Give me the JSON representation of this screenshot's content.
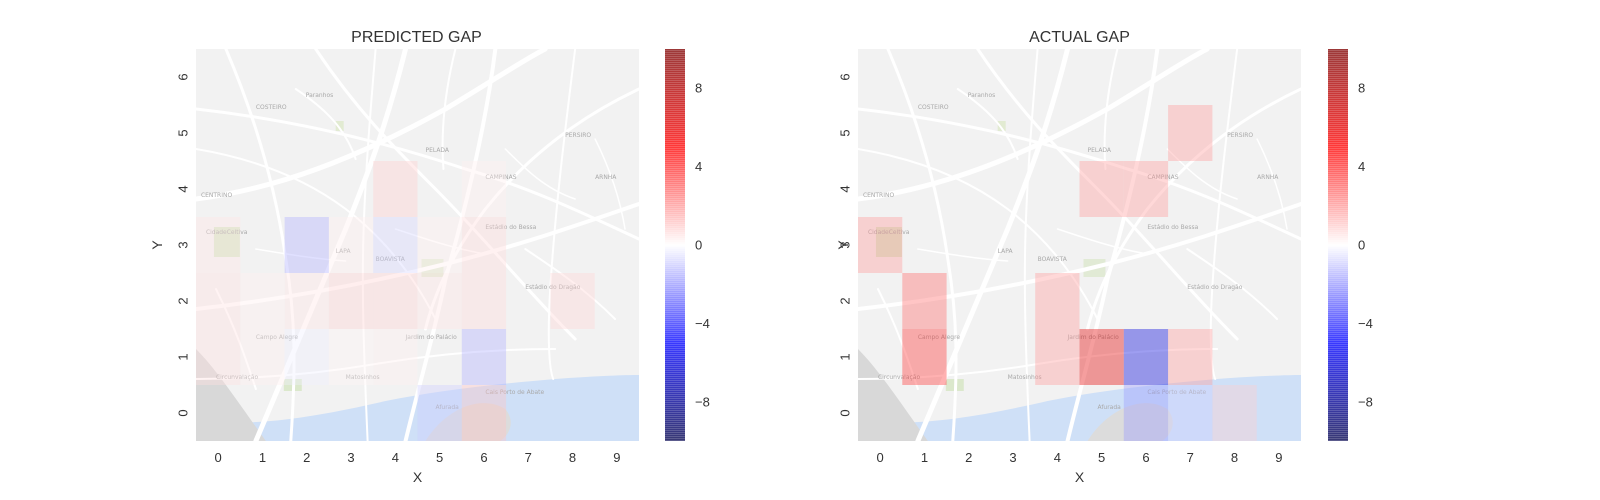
{
  "chart_data": [
    {
      "type": "heatmap",
      "title": "PREDICTED GAP",
      "xlabel": "X",
      "ylabel": "Y",
      "x": [
        0,
        1,
        2,
        3,
        4,
        5,
        6,
        7,
        8,
        9
      ],
      "y": [
        0,
        1,
        2,
        3,
        4,
        5,
        6
      ],
      "background": "street map of Porto (Vila Nova de Gaia river area)",
      "colormap": "seismic",
      "vmin": -10,
      "vmax": 10,
      "colorbar_ticks": [
        -8,
        -4,
        0,
        4,
        8
      ],
      "cells": [
        {
          "x": 0,
          "y": 1,
          "value": 0.6
        },
        {
          "x": 0,
          "y": 2,
          "value": 0.6
        },
        {
          "x": 0,
          "y": 3,
          "value": 0.5
        },
        {
          "x": 1,
          "y": 1,
          "value": 0.3
        },
        {
          "x": 1,
          "y": 2,
          "value": 0.3
        },
        {
          "x": 2,
          "y": 3,
          "value": -1.6
        },
        {
          "x": 2,
          "y": 2,
          "value": 0.5
        },
        {
          "x": 2,
          "y": 1,
          "value": -0.3
        },
        {
          "x": 3,
          "y": 2,
          "value": 0.9
        },
        {
          "x": 3,
          "y": 1,
          "value": 0.2
        },
        {
          "x": 3,
          "y": 3,
          "value": 0.3
        },
        {
          "x": 4,
          "y": 4,
          "value": 1.0
        },
        {
          "x": 4,
          "y": 3,
          "value": -0.8
        },
        {
          "x": 4,
          "y": 2,
          "value": 0.9
        },
        {
          "x": 4,
          "y": 1,
          "value": 0.3
        },
        {
          "x": 5,
          "y": 0,
          "value": -1.0
        },
        {
          "x": 5,
          "y": 2,
          "value": 0.5
        },
        {
          "x": 5,
          "y": 3,
          "value": 0.3
        },
        {
          "x": 6,
          "y": 1,
          "value": -1.6
        },
        {
          "x": 6,
          "y": 0,
          "value": 1.2
        },
        {
          "x": 6,
          "y": 2,
          "value": 0.7
        },
        {
          "x": 6,
          "y": 3,
          "value": 0.7
        },
        {
          "x": 6,
          "y": 4,
          "value": 0.3
        },
        {
          "x": 8,
          "y": 2,
          "value": 0.8
        }
      ]
    },
    {
      "type": "heatmap",
      "title": "ACTUAL GAP",
      "xlabel": "X",
      "ylabel": "Y",
      "x": [
        0,
        1,
        2,
        3,
        4,
        5,
        6,
        7,
        8,
        9
      ],
      "y": [
        0,
        1,
        2,
        3,
        4,
        5,
        6
      ],
      "background": "street map of Porto (Vila Nova de Gaia river area)",
      "colormap": "seismic",
      "vmin": -10,
      "vmax": 10,
      "colorbar_ticks": [
        -8,
        -4,
        0,
        4,
        8
      ],
      "cells": [
        {
          "x": 7,
          "y": 5,
          "value": 2
        },
        {
          "x": 5,
          "y": 4,
          "value": 2
        },
        {
          "x": 6,
          "y": 4,
          "value": 2
        },
        {
          "x": 0,
          "y": 3,
          "value": 2
        },
        {
          "x": 1,
          "y": 2,
          "value": 3
        },
        {
          "x": 4,
          "y": 2,
          "value": 2
        },
        {
          "x": 4,
          "y": 1,
          "value": 2
        },
        {
          "x": 1,
          "y": 1,
          "value": 4
        },
        {
          "x": 5,
          "y": 1,
          "value": 6
        },
        {
          "x": 6,
          "y": 1,
          "value": -6
        },
        {
          "x": 7,
          "y": 1,
          "value": 2
        },
        {
          "x": 6,
          "y": 0,
          "value": -2
        },
        {
          "x": 7,
          "y": 0,
          "value": -1
        },
        {
          "x": 8,
          "y": 0,
          "value": 1
        }
      ]
    }
  ]
}
